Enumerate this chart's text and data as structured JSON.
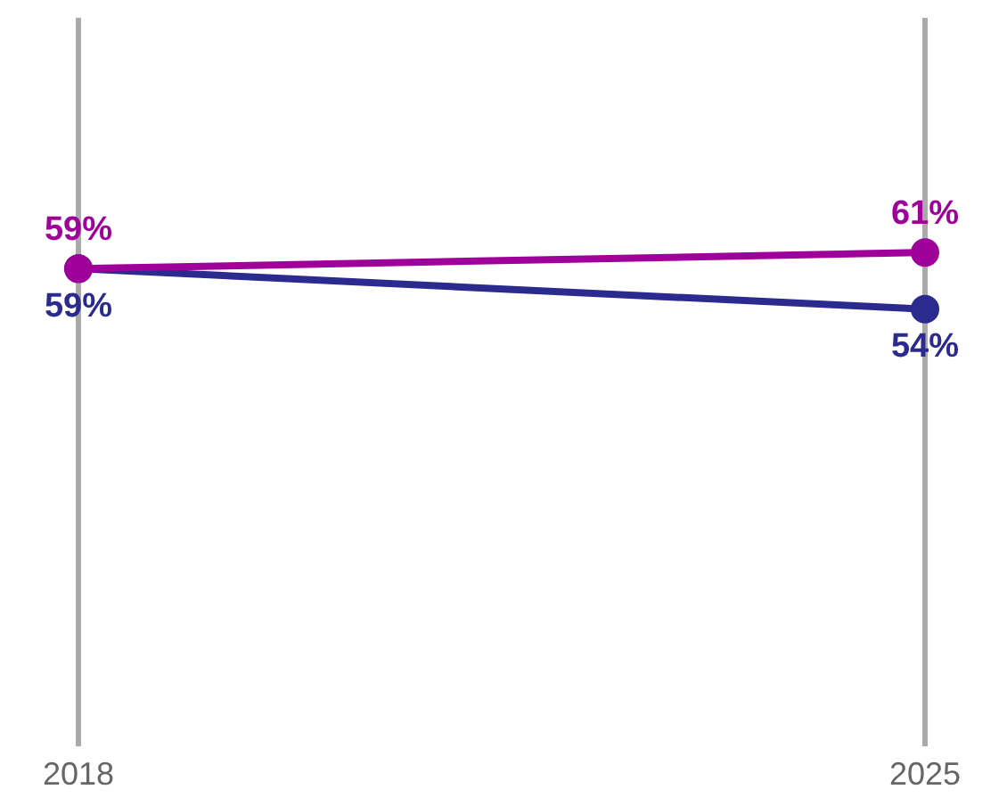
{
  "chart_data": {
    "type": "line",
    "categories": [
      "2018",
      "2025"
    ],
    "series": [
      {
        "color": "#a0009a",
        "values": [
          59,
          61
        ],
        "value_labels": [
          "59%",
          "61%"
        ]
      },
      {
        "color": "#2b2a8e",
        "values": [
          59,
          54
        ],
        "value_labels": [
          "59%",
          "54%"
        ]
      }
    ],
    "grid": "x",
    "marker": "circle",
    "tick_labels": "x",
    "legend": false
  }
}
